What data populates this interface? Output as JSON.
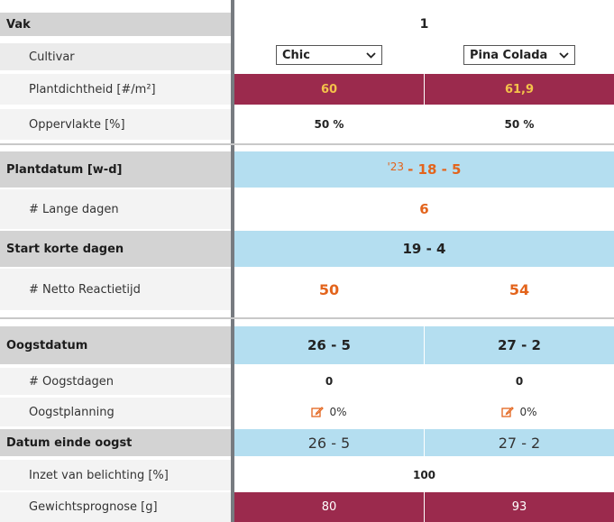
{
  "labels": {
    "vak": "Vak",
    "cultivar": "Cultivar",
    "plantdichtheid": "Plantdichtheid [#/m²]",
    "oppervlakte": "Oppervlakte [%]",
    "plantdatum": "Plantdatum [w-d]",
    "lange_dagen": "# Lange dagen",
    "start_korte": "Start korte dagen",
    "netto": "# Netto Reactietijd",
    "oogstdatum": "Oogstdatum",
    "oogstdagen": "# Oogstdagen",
    "oogstplanning": "Oogstplanning",
    "einde_oogst": "Datum einde oogst",
    "belichting": "Inzet van belichting [%]",
    "gewicht": "Gewichtsprognose [g]"
  },
  "values": {
    "vak": "1",
    "cultivar": [
      "Chic",
      "Pina Colada"
    ],
    "plantdichtheid": [
      "60",
      "61,9"
    ],
    "oppervlakte": [
      "50 %",
      "50 %"
    ],
    "plantdatum_year": "'23",
    "plantdatum_rest": "- 18 - 5",
    "lange_dagen": "6",
    "start_korte": "19 - 4",
    "netto": [
      "50",
      "54"
    ],
    "oogstdatum": [
      "26 - 5",
      "27 - 2"
    ],
    "oogstdagen": [
      "0",
      "0"
    ],
    "oogstplanning": [
      "0%",
      "0%"
    ],
    "einde_oogst": [
      "26 - 5",
      "27 - 2"
    ],
    "belichting": "100",
    "gewicht": [
      "80",
      "93"
    ]
  },
  "icons": {
    "select": "chevron-down-icon",
    "edit": "edit-icon"
  },
  "colors": {
    "header_gray": "#d3d3d3",
    "sub_gray": "#ebebeb",
    "blue": "#b4def0",
    "wine": "#9b2a4d",
    "orange": "#e3641c",
    "yellow": "#f4c24a"
  }
}
